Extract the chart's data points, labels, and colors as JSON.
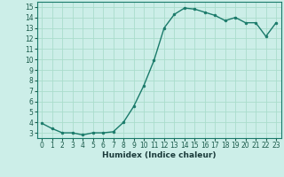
{
  "x": [
    0,
    1,
    2,
    3,
    4,
    5,
    6,
    7,
    8,
    9,
    10,
    11,
    12,
    13,
    14,
    15,
    16,
    17,
    18,
    19,
    20,
    21,
    22,
    23
  ],
  "y": [
    3.9,
    3.4,
    3.0,
    3.0,
    2.8,
    3.0,
    3.0,
    3.1,
    4.0,
    5.5,
    7.5,
    9.9,
    13.0,
    14.3,
    14.9,
    14.8,
    14.5,
    14.2,
    13.7,
    14.0,
    13.5,
    13.5,
    12.2,
    13.5
  ],
  "line_color": "#1a7a6a",
  "marker_color": "#1a7a6a",
  "bg_color": "#cceee8",
  "grid_color": "#aaddcc",
  "xlabel": "Humidex (Indice chaleur)",
  "ylim": [
    2.5,
    15.5
  ],
  "xlim": [
    -0.5,
    23.5
  ],
  "yticks": [
    3,
    4,
    5,
    6,
    7,
    8,
    9,
    10,
    11,
    12,
    13,
    14,
    15
  ],
  "xticks": [
    0,
    1,
    2,
    3,
    4,
    5,
    6,
    7,
    8,
    9,
    10,
    11,
    12,
    13,
    14,
    15,
    16,
    17,
    18,
    19,
    20,
    21,
    22,
    23
  ],
  "label_fontsize": 6.5,
  "tick_fontsize": 5.5,
  "marker_size": 2.0,
  "line_width": 1.0
}
